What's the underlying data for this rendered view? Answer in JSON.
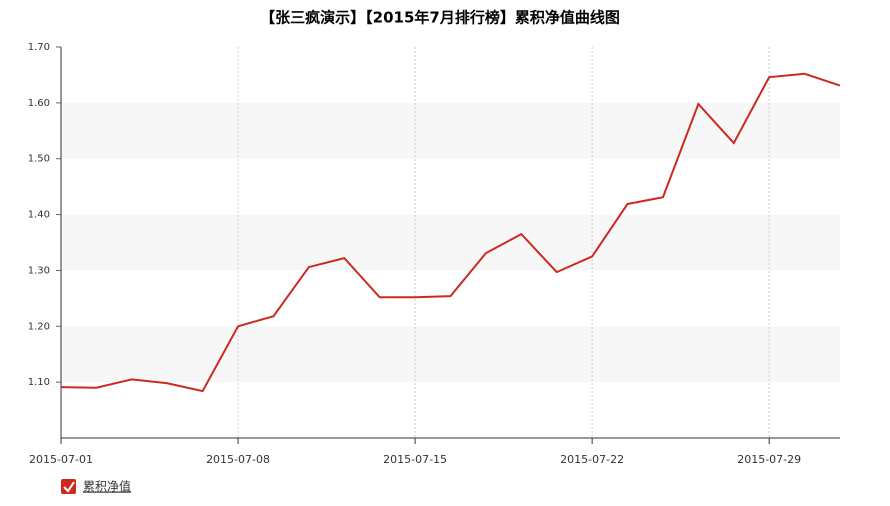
{
  "chart_data": {
    "type": "line",
    "title": "【张三疯演示】【2015年7月排行榜】累积净值曲线图",
    "categories": [
      "2015-07-01",
      null,
      null,
      null,
      null,
      "2015-07-08",
      null,
      null,
      null,
      null,
      "2015-07-15",
      null,
      null,
      null,
      null,
      "2015-07-22",
      null,
      null,
      null,
      null,
      "2015-07-29",
      null,
      null
    ],
    "series": [
      {
        "name": "累积净值",
        "color": "#cc2a1e",
        "values": [
          1.091,
          1.09,
          1.105,
          1.098,
          1.084,
          1.2,
          1.218,
          1.306,
          1.322,
          1.252,
          1.252,
          1.254,
          1.331,
          1.365,
          1.297,
          1.325,
          1.419,
          1.431,
          1.598,
          1.528,
          1.646,
          1.652,
          1.631
        ]
      }
    ],
    "ylim": [
      1.0,
      1.7
    ],
    "yticks": [
      {
        "value": 1.1,
        "label": "1.10"
      },
      {
        "value": 1.2,
        "label": "1.20"
      },
      {
        "value": 1.3,
        "label": "1.30"
      },
      {
        "value": 1.4,
        "label": "1.40"
      },
      {
        "value": 1.5,
        "label": "1.50"
      },
      {
        "value": 1.6,
        "label": "1.60"
      },
      {
        "value": 1.7,
        "label": "1.70"
      }
    ],
    "grid": true
  }
}
